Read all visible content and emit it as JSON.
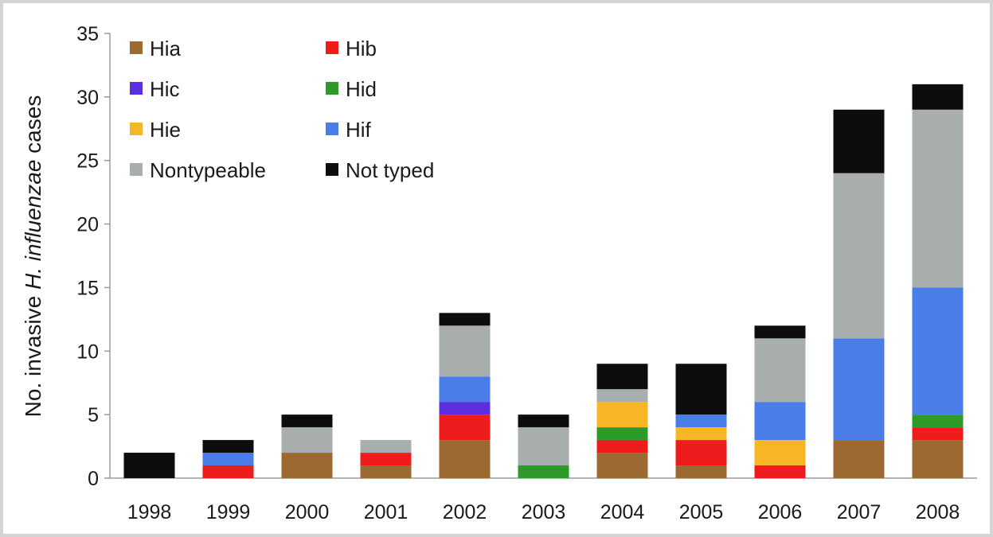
{
  "chart_data": {
    "type": "bar",
    "stacked": true,
    "categories": [
      "1998",
      "1999",
      "2000",
      "2001",
      "2002",
      "2003",
      "2004",
      "2005",
      "2006",
      "2007",
      "2008"
    ],
    "series": [
      {
        "name": "Hia",
        "color": "#9c6a31",
        "values": [
          0,
          0,
          2,
          1,
          3,
          0,
          2,
          1,
          0,
          3,
          3
        ]
      },
      {
        "name": "Hib",
        "color": "#ee1c1c",
        "values": [
          0,
          1,
          0,
          1,
          2,
          0,
          1,
          2,
          1,
          0,
          1
        ]
      },
      {
        "name": "Hic",
        "color": "#5b2ee0",
        "values": [
          0,
          0,
          0,
          0,
          1,
          0,
          0,
          0,
          0,
          0,
          0
        ]
      },
      {
        "name": "Hid",
        "color": "#2e9a2a",
        "values": [
          0,
          0,
          0,
          0,
          0,
          1,
          1,
          0,
          0,
          0,
          1
        ]
      },
      {
        "name": "Hie",
        "color": "#f6b625",
        "values": [
          0,
          0,
          0,
          0,
          0,
          0,
          2,
          1,
          2,
          0,
          0
        ]
      },
      {
        "name": "Hif",
        "color": "#4a7de8",
        "values": [
          0,
          1,
          0,
          0,
          2,
          0,
          0,
          1,
          3,
          8,
          10
        ]
      },
      {
        "name": "Nontypeable",
        "color": "#a8aeae",
        "values": [
          0,
          0,
          2,
          1,
          4,
          3,
          1,
          0,
          5,
          13,
          14
        ]
      },
      {
        "name": "Not typed",
        "color": "#0d0d0d",
        "values": [
          2,
          1,
          1,
          0,
          1,
          1,
          2,
          4,
          1,
          5,
          2
        ]
      }
    ],
    "ylabel_prefix": "No. invasive ",
    "ylabel_italic": "H. influenzae",
    "ylabel_suffix": " cases",
    "ylim": [
      0,
      35
    ],
    "yticks": [
      0,
      5,
      10,
      15,
      20,
      25,
      30,
      35
    ],
    "grid": false,
    "legend_position": "top-left"
  }
}
